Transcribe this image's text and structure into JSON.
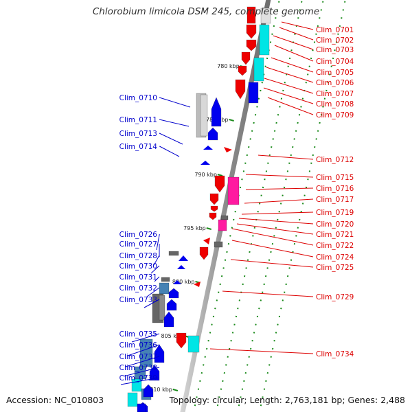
{
  "title": "Chlorobium limicola DSM 245, complete genome",
  "footer": {
    "accession": "Accession: NC_010803",
    "summary": "Topology: circular; Length: 2,763,181 bp; Genes: 2,488"
  },
  "colors": {
    "backbone": "#8c8c8c",
    "tick": "#1a8a1a",
    "forward_label": "#dd0000",
    "reverse_label": "#0000cc",
    "gene_red": "#ee0000",
    "gene_blue": "#0000ee",
    "gene_cyan": "#00e5e5",
    "gene_magenta": "#ff1aa0",
    "gene_gray": "#666666",
    "gene_lightgray": "#cccccc",
    "gene_steelblue": "#4682b4"
  },
  "scale_labels": [
    "780 kbp",
    "785 kbp",
    "790 kbp",
    "795 kbp",
    "800 kbp",
    "805 kbp",
    "810 kbp"
  ],
  "forward_genes": [
    "Clim_0701",
    "Clim_0702",
    "Clim_0703",
    "Clim_0704",
    "Clim_0705",
    "Clim_0706",
    "Clim_0707",
    "Clim_0708",
    "Clim_0709",
    "Clim_0712",
    "Clim_0715",
    "Clim_0716",
    "Clim_0717",
    "Clim_0719",
    "Clim_0720",
    "Clim_0721",
    "Clim_0722",
    "Clim_0724",
    "Clim_0725",
    "Clim_0729",
    "Clim_0734"
  ],
  "reverse_genes": [
    "Clim_0710",
    "Clim_0711",
    "Clim_0713",
    "Clim_0714",
    "Clim_0726",
    "Clim_0727",
    "Clim_0728",
    "Clim_0730",
    "Clim_0731",
    "Clim_0732",
    "Clim_0733",
    "Clim_0735",
    "Clim_0736",
    "Clim_0737",
    "Clim_0738",
    "Clim_0739"
  ]
}
